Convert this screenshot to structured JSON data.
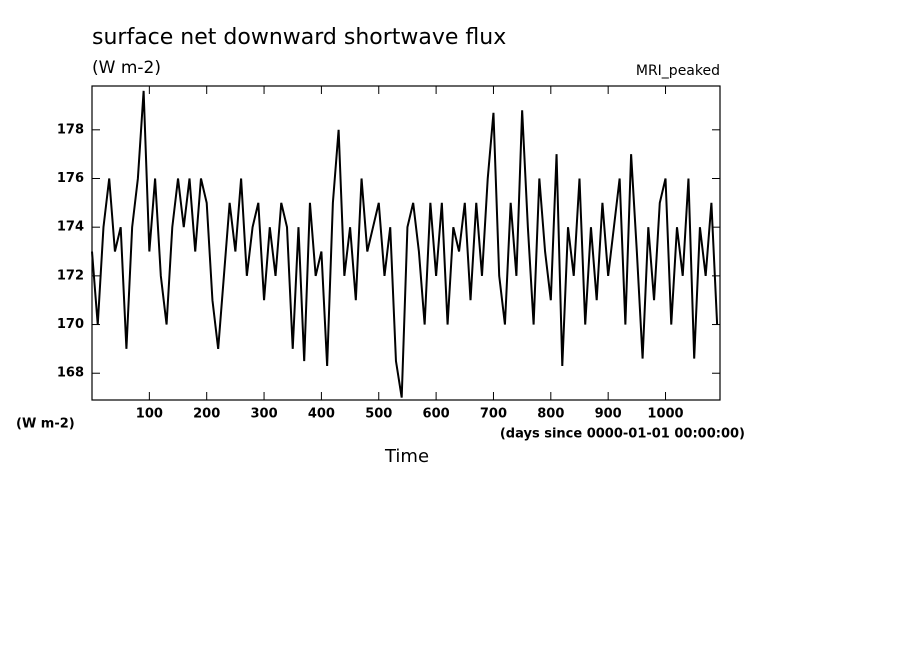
{
  "chart_data": {
    "type": "line",
    "title": "surface net downward shortwave flux",
    "subtitle": "(W m-2)",
    "annotation": "MRI_peaked",
    "y_label": "(W m-2)",
    "x_label": "Time",
    "x_units_label": "(days since 0000-01-01 00:00:00)",
    "xlim": [
      0,
      1095
    ],
    "ylim": [
      166.9,
      179.8
    ],
    "xticks": [
      100,
      200,
      300,
      400,
      500,
      600,
      700,
      800,
      900,
      1000
    ],
    "yticks": [
      168,
      170,
      172,
      174,
      176,
      178
    ],
    "x": [
      0,
      10,
      20,
      30,
      40,
      50,
      60,
      70,
      80,
      90,
      100,
      110,
      120,
      130,
      140,
      150,
      160,
      170,
      180,
      190,
      200,
      210,
      220,
      230,
      240,
      250,
      260,
      270,
      280,
      290,
      300,
      310,
      320,
      330,
      340,
      350,
      360,
      370,
      380,
      390,
      400,
      410,
      420,
      430,
      440,
      450,
      460,
      470,
      480,
      490,
      500,
      510,
      520,
      530,
      540,
      550,
      560,
      570,
      580,
      590,
      600,
      610,
      620,
      630,
      640,
      650,
      660,
      670,
      680,
      690,
      700,
      710,
      720,
      730,
      740,
      750,
      760,
      770,
      780,
      790,
      800,
      810,
      820,
      830,
      840,
      850,
      860,
      870,
      880,
      890,
      900,
      910,
      920,
      930,
      940,
      950,
      960,
      970,
      980,
      990,
      1000,
      1010,
      1020,
      1030,
      1040,
      1050,
      1060,
      1070,
      1080,
      1090
    ],
    "series": [
      {
        "name": "MRI_peaked",
        "color": "#000000",
        "values": [
          173,
          170,
          174,
          176,
          173,
          174,
          169,
          174,
          176,
          179.6,
          173,
          176,
          172,
          170,
          174,
          176,
          174,
          176,
          173,
          176,
          175,
          171,
          169,
          172,
          175,
          173,
          176,
          172,
          174,
          175,
          171,
          174,
          172,
          175,
          174,
          169,
          174,
          168.5,
          175,
          172,
          173,
          168.3,
          175,
          178,
          172,
          174,
          171,
          176,
          173,
          174,
          175,
          172,
          174,
          168.5,
          167,
          174,
          175,
          173,
          170,
          175,
          172,
          175,
          170,
          174,
          173,
          175,
          171,
          175,
          172,
          176,
          178.7,
          172,
          170,
          175,
          172,
          178.8,
          174,
          170,
          176,
          173,
          171,
          177,
          168.3,
          174,
          172,
          176,
          170,
          174,
          171,
          175,
          172,
          174,
          176,
          170,
          177,
          173,
          168.6,
          174,
          171,
          175,
          176,
          170,
          174,
          172,
          176,
          168.6,
          174,
          172,
          175,
          170
        ]
      }
    ]
  }
}
